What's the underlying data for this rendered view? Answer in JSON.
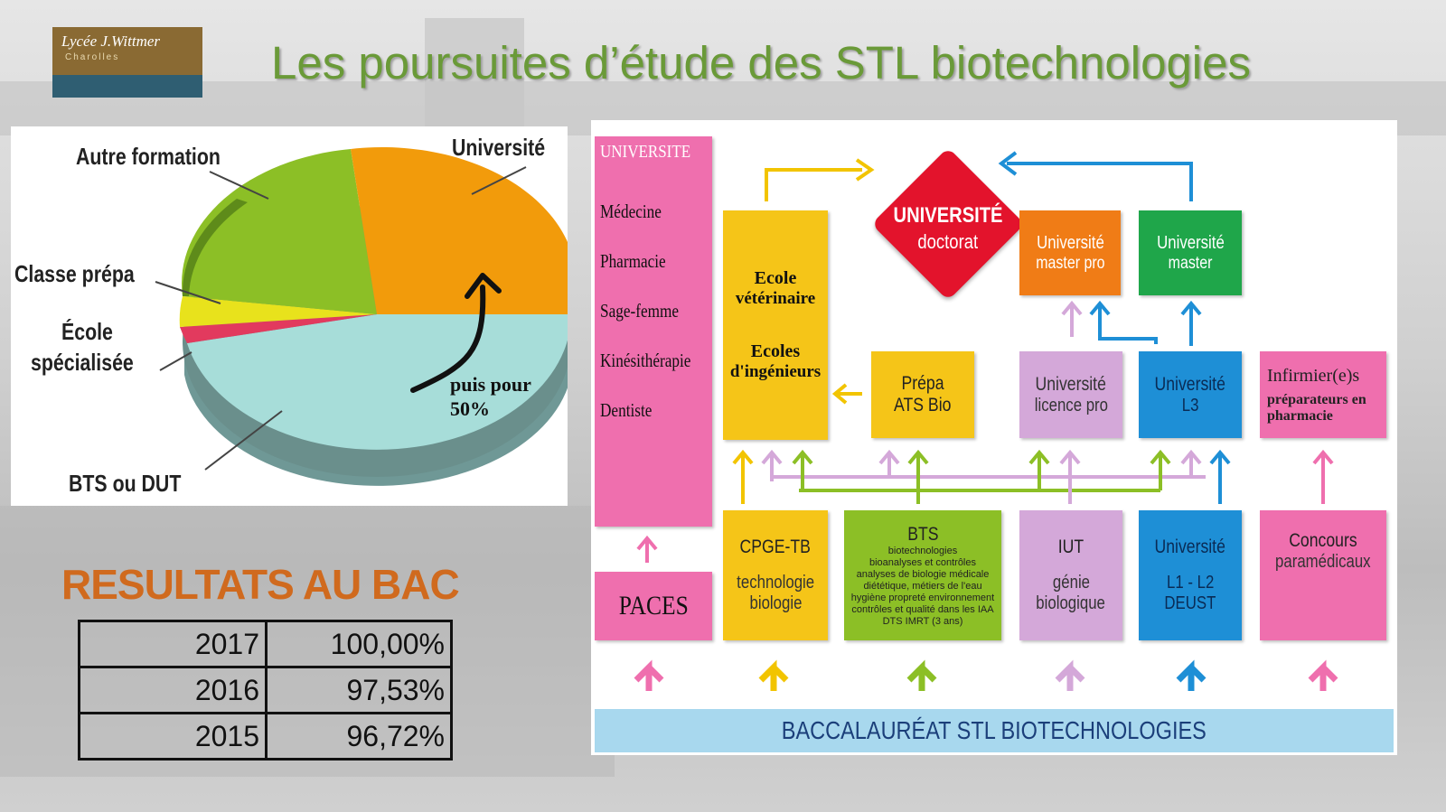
{
  "logo": {
    "line1": "Lycée J.Wittmer",
    "line2": "Charolles"
  },
  "title": "Les poursuites d’étude des STL biotechnologies",
  "pie": {
    "labels": {
      "autre": "Autre formation",
      "universite": "Université",
      "prepa": "Classe prépa",
      "ecole1": "École",
      "ecole2": "spécialisée",
      "bts": "BTS ou DUT"
    },
    "note_line1": "puis pour",
    "note_line2": "50%",
    "colors": {
      "universite": "#f29b0b",
      "autre": "#8cbf26",
      "prepa": "#e8e21c",
      "ecole": "#e23a5e",
      "bts": "#a7ddd9"
    }
  },
  "chart_data": {
    "type": "pie",
    "categories": [
      "Université",
      "Autre formation",
      "Classe prépa",
      "École spécialisée",
      "BTS ou DUT"
    ],
    "values": [
      22,
      22,
      3,
      3,
      50
    ],
    "title": ""
  },
  "results": {
    "title": "RESULTATS AU BAC",
    "rows": [
      {
        "year": "2017",
        "value": "100,00%"
      },
      {
        "year": "2016",
        "value": "97,53%"
      },
      {
        "year": "2015",
        "value": "96,72%"
      }
    ]
  },
  "diagram": {
    "universite_col": {
      "header": "UNIVERSITE",
      "items": [
        "Médecine",
        "Pharmacie",
        "Sage-femme",
        "Kinésithérapie",
        "Dentiste"
      ]
    },
    "paces": "PACES",
    "ecole": {
      "line1": "Ecole",
      "line2": "vétérinaire",
      "line3": "Ecoles",
      "line4": "d'ingénieurs"
    },
    "doctorat": {
      "line1": "UNIVERSITÉ",
      "line2": "doctorat"
    },
    "master_pro": {
      "line1": "Université",
      "line2": "master pro"
    },
    "master": {
      "line1": "Université",
      "line2": "master"
    },
    "prepa_ats": {
      "line1": "Prépa",
      "line2": "ATS Bio"
    },
    "licence_pro": {
      "line1": "Université",
      "line2": "licence pro"
    },
    "l3": {
      "line1": "Université",
      "line2": "L3"
    },
    "infirmier": {
      "line1": "Infirmier(e)s",
      "line2": "préparateurs en",
      "line3": "pharmacie"
    },
    "cpge": {
      "line1": "CPGE-TB",
      "line2": "technologie",
      "line3": "biologie"
    },
    "bts": {
      "title": "BTS",
      "lines": [
        "biotechnologies",
        "bioanalyses et contrôles",
        "analyses de biologie médicale",
        "diététique, métiers de l'eau",
        "hygiène propreté environnement",
        "contrôles et qualité dans les IAA",
        "DTS IMRT (3 ans)"
      ]
    },
    "iut": {
      "line1": "IUT",
      "line2": "génie",
      "line3": "biologique"
    },
    "l1l2": {
      "line1": "Université",
      "line2": "L1 - L2",
      "line3": "DEUST"
    },
    "concours": {
      "line1": "Concours",
      "line2": "paramédicaux"
    },
    "bac": "BACCALAURÉAT STL BIOTECHNOLOGIES"
  }
}
